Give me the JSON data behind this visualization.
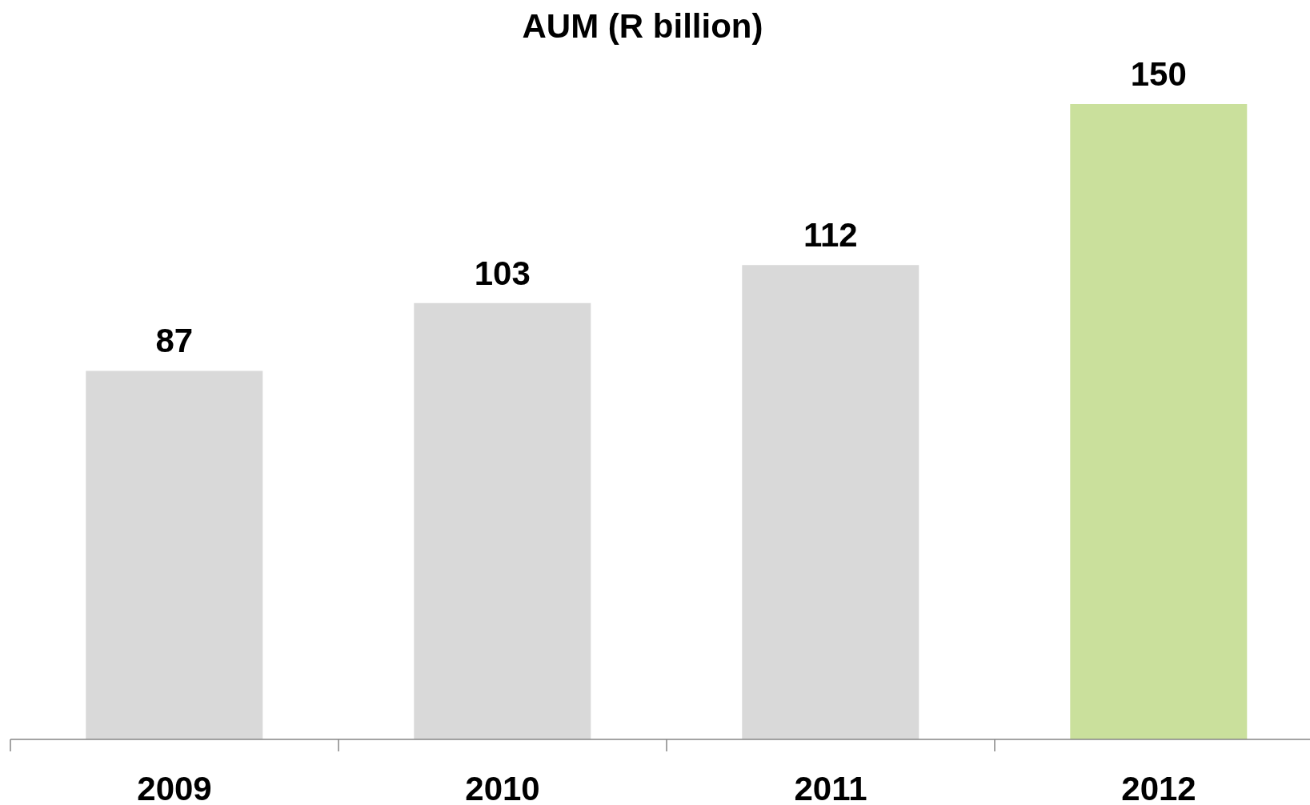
{
  "chart_data": {
    "type": "bar",
    "title": "AUM (R billion)",
    "categories": [
      "2009",
      "2010",
      "2011",
      "2012"
    ],
    "values": [
      87,
      103,
      112,
      150
    ],
    "colors": [
      "#d9d9d9",
      "#d9d9d9",
      "#d9d9d9",
      "#cae09c"
    ],
    "data_labels": true,
    "tick_labels": "x"
  }
}
